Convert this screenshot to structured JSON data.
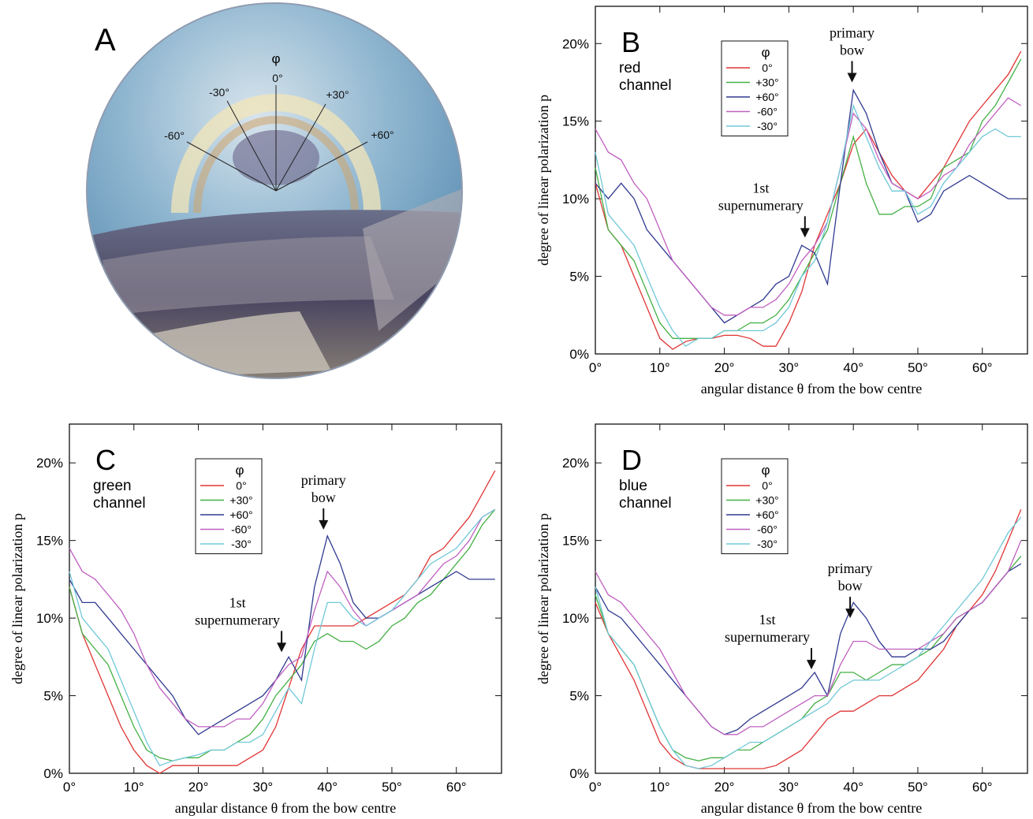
{
  "photo": {
    "panel": "A",
    "axis_symbol": "φ",
    "angle_labels": [
      "0°",
      "-30°",
      "+30°",
      "-60°",
      "+60°"
    ]
  },
  "chart_data": [
    {
      "type": "line",
      "panel": "B",
      "subtitle_lines": [
        "red",
        "channel"
      ],
      "x_label": "angular distance θ from the bow centre",
      "y_label": "degree of linear polarization p",
      "legend_title": "φ",
      "xlim": [
        0,
        67
      ],
      "ylim": [
        0,
        22.4
      ],
      "xticks": [
        {
          "value": 0,
          "label": "0°"
        },
        {
          "value": 10,
          "label": "10°"
        },
        {
          "value": 20,
          "label": "20°"
        },
        {
          "value": 30,
          "label": "30°"
        },
        {
          "value": 40,
          "label": "40°"
        },
        {
          "value": 50,
          "label": "50°"
        },
        {
          "value": 60,
          "label": "60°"
        }
      ],
      "yticks": [
        {
          "value": 0,
          "label": "0%"
        },
        {
          "value": 5,
          "label": "5%"
        },
        {
          "value": 10,
          "label": "10%"
        },
        {
          "value": 15,
          "label": "15%"
        },
        {
          "value": 20,
          "label": "20%"
        }
      ],
      "annotations": [
        {
          "lines": [
            "1st",
            "supernumerary"
          ],
          "x": 32.5,
          "y": 7.5
        },
        {
          "lines": [
            "primary",
            "bow"
          ],
          "x": 39.8,
          "y": 17.5
        }
      ],
      "x": [
        0,
        2,
        4,
        6,
        8,
        10,
        12,
        14,
        16,
        18,
        20,
        22,
        24,
        26,
        28,
        30,
        32,
        34,
        36,
        38,
        40,
        42,
        44,
        46,
        48,
        50,
        52,
        54,
        56,
        58,
        60,
        62,
        64,
        66
      ],
      "series": [
        {
          "name": "0°",
          "color": "#e03535",
          "values": [
            11,
            8,
            7,
            5,
            3,
            1,
            0.3,
            0.8,
            1,
            1,
            1.2,
            1.2,
            1,
            0.5,
            0.5,
            2,
            4,
            7,
            9,
            11,
            13.5,
            14.5,
            13,
            11.5,
            10.5,
            10,
            11,
            12,
            13.5,
            15,
            16,
            17,
            18,
            19.5
          ]
        },
        {
          "name": "+30°",
          "color": "#45b045",
          "values": [
            12,
            8,
            7,
            6,
            4,
            2,
            1,
            1,
            1,
            1,
            1.5,
            1.5,
            2,
            2,
            2.5,
            3.5,
            5,
            6.5,
            8,
            11,
            14,
            11,
            9,
            9,
            9.5,
            9.5,
            10,
            12,
            12.5,
            13,
            15,
            16,
            17.5,
            19
          ]
        },
        {
          "name": "+60°",
          "color": "#303a90",
          "values": [
            11,
            10,
            11,
            10,
            8,
            7,
            6,
            5,
            4,
            3,
            2,
            2.5,
            3,
            3.5,
            4.5,
            5,
            7,
            6.5,
            4.5,
            11,
            17,
            15.5,
            13,
            11,
            10.5,
            8.5,
            9,
            10.5,
            11,
            11.5,
            11,
            10.5,
            10,
            10
          ]
        },
        {
          "name": "-60°",
          "color": "#c060c0",
          "values": [
            14.5,
            13,
            12.5,
            11,
            10,
            8,
            6,
            5,
            4,
            3,
            2.5,
            2.5,
            3,
            3,
            3.5,
            4.5,
            6,
            7,
            8.5,
            12,
            15.5,
            14.5,
            12.5,
            11,
            10.5,
            10,
            10.5,
            11.5,
            12,
            13.5,
            14.5,
            15.5,
            16.5,
            16
          ]
        },
        {
          "name": "-30°",
          "color": "#70c8d8",
          "values": [
            13,
            9,
            8,
            7,
            5,
            3,
            1.5,
            0.5,
            1,
            1,
            1.5,
            1.5,
            1.5,
            1.5,
            2,
            3,
            5,
            6,
            8.5,
            12,
            16,
            14,
            12,
            10.5,
            10.5,
            9,
            9.5,
            11,
            12,
            13,
            14,
            14.5,
            14,
            14
          ]
        }
      ]
    },
    {
      "type": "line",
      "panel": "C",
      "subtitle_lines": [
        "green",
        "channel"
      ],
      "x_label": "angular distance θ from the bow centre",
      "y_label": "degree of linear polarization p",
      "legend_title": "φ",
      "xlim": [
        0,
        67
      ],
      "ylim": [
        0,
        22.5
      ],
      "xticks": [
        {
          "value": 0,
          "label": "0°"
        },
        {
          "value": 10,
          "label": "10°"
        },
        {
          "value": 20,
          "label": "20°"
        },
        {
          "value": 30,
          "label": "30°"
        },
        {
          "value": 40,
          "label": "40°"
        },
        {
          "value": 50,
          "label": "50°"
        },
        {
          "value": 60,
          "label": "60°"
        }
      ],
      "yticks": [
        {
          "value": 0,
          "label": "0%"
        },
        {
          "value": 5,
          "label": "5%"
        },
        {
          "value": 10,
          "label": "10%"
        },
        {
          "value": 15,
          "label": "15%"
        },
        {
          "value": 20,
          "label": "20%"
        }
      ],
      "annotations": [
        {
          "lines": [
            "1st",
            "supernumerary"
          ],
          "x": 32.9,
          "y": 7.8
        },
        {
          "lines": [
            "primary",
            "bow"
          ],
          "x": 39.4,
          "y": 15.7
        }
      ],
      "x": [
        0,
        2,
        4,
        6,
        8,
        10,
        12,
        14,
        16,
        18,
        20,
        22,
        24,
        26,
        28,
        30,
        32,
        34,
        36,
        38,
        40,
        42,
        44,
        46,
        48,
        50,
        52,
        54,
        56,
        58,
        60,
        62,
        64,
        66
      ],
      "series": [
        {
          "name": "0°",
          "color": "#e03535",
          "values": [
            12,
            9,
            7,
            5,
            3,
            1.5,
            0.5,
            0,
            0.5,
            0.5,
            0.5,
            0.5,
            0.5,
            0.5,
            1,
            1.5,
            3,
            5.5,
            8,
            9.5,
            9.5,
            9.5,
            9.5,
            10,
            10.5,
            11,
            11.5,
            12.5,
            14,
            14.5,
            15.5,
            16.5,
            18,
            19.5
          ]
        },
        {
          "name": "+30°",
          "color": "#45b045",
          "values": [
            12,
            9,
            8,
            7,
            5,
            3,
            1.5,
            1,
            0.8,
            1,
            1,
            1.5,
            1.5,
            2,
            2.5,
            3.5,
            5,
            6,
            7,
            8.5,
            9,
            8.5,
            8.5,
            8,
            8.5,
            9.5,
            10,
            11,
            11.5,
            12.5,
            13.5,
            14.5,
            16,
            17
          ]
        },
        {
          "name": "+60°",
          "color": "#303a90",
          "values": [
            12.5,
            11,
            11,
            10,
            9,
            8,
            7,
            6,
            5,
            3.5,
            2.5,
            3,
            3.5,
            4,
            4.5,
            5,
            6,
            7.5,
            6,
            12,
            15.3,
            13.5,
            11,
            10,
            10,
            10.5,
            11,
            11.5,
            12,
            12.5,
            13,
            12.5,
            12.5,
            12.5
          ]
        },
        {
          "name": "-60°",
          "color": "#c060c0",
          "values": [
            14.5,
            13,
            12.5,
            11.5,
            10.5,
            9,
            7,
            5.5,
            4.5,
            3.5,
            3,
            3,
            3,
            3.5,
            3.5,
            4.5,
            6,
            7,
            7.5,
            10.5,
            13,
            12,
            10.5,
            9.5,
            10,
            10.5,
            11,
            11.5,
            12.5,
            13.5,
            14,
            15,
            16.5,
            17
          ]
        },
        {
          "name": "-30°",
          "color": "#70c8d8",
          "values": [
            13,
            10,
            9,
            8,
            6,
            4,
            2,
            0.5,
            0.8,
            1,
            1.2,
            1.5,
            1.5,
            2,
            2,
            2.5,
            4,
            5.5,
            4.5,
            8,
            11,
            11,
            10,
            9.5,
            10,
            10.5,
            11.5,
            12.5,
            13.5,
            14,
            14.5,
            15.5,
            16.5,
            17
          ]
        }
      ]
    },
    {
      "type": "line",
      "panel": "D",
      "subtitle_lines": [
        "blue",
        "channel"
      ],
      "x_label": "angular distance θ from the bow centre",
      "y_label": "degree of linear polarization p",
      "legend_title": "φ",
      "xlim": [
        0,
        67
      ],
      "ylim": [
        0,
        22.5
      ],
      "xticks": [
        {
          "value": 0,
          "label": "0°"
        },
        {
          "value": 10,
          "label": "10°"
        },
        {
          "value": 20,
          "label": "20°"
        },
        {
          "value": 30,
          "label": "30°"
        },
        {
          "value": 40,
          "label": "40°"
        },
        {
          "value": 50,
          "label": "50°"
        },
        {
          "value": 60,
          "label": "60°"
        }
      ],
      "yticks": [
        {
          "value": 0,
          "label": "0%"
        },
        {
          "value": 5,
          "label": "5%"
        },
        {
          "value": 10,
          "label": "10%"
        },
        {
          "value": 15,
          "label": "15%"
        },
        {
          "value": 20,
          "label": "20%"
        }
      ],
      "annotations": [
        {
          "lines": [
            "1st",
            "supernumerary"
          ],
          "x": 33.5,
          "y": 6.7
        },
        {
          "lines": [
            "primary",
            "bow"
          ],
          "x": 39.5,
          "y": 10
        }
      ],
      "x": [
        0,
        2,
        4,
        6,
        8,
        10,
        12,
        14,
        16,
        18,
        20,
        22,
        24,
        26,
        28,
        30,
        32,
        34,
        36,
        38,
        40,
        42,
        44,
        46,
        48,
        50,
        52,
        54,
        56,
        58,
        60,
        62,
        64,
        66
      ],
      "series": [
        {
          "name": "0°",
          "color": "#e03535",
          "values": [
            11,
            9,
            7.5,
            6,
            4,
            2,
            1,
            0.5,
            0.3,
            0.3,
            0.3,
            0.3,
            0.3,
            0.3,
            0.5,
            1,
            1.5,
            2.5,
            3.5,
            4,
            4,
            4.5,
            5,
            5,
            5.5,
            6,
            7,
            8,
            9.5,
            10.5,
            11.5,
            13,
            15,
            17
          ]
        },
        {
          "name": "+30°",
          "color": "#45b045",
          "values": [
            11.5,
            9,
            8,
            7,
            5,
            3,
            1.5,
            1,
            0.8,
            1,
            1,
            1.5,
            1.5,
            2,
            2.5,
            3,
            3.5,
            4.5,
            5,
            6.5,
            6.5,
            6,
            6.5,
            7,
            7,
            7.5,
            8,
            9,
            10,
            10.5,
            11,
            12,
            13,
            14
          ]
        },
        {
          "name": "+60°",
          "color": "#303a90",
          "values": [
            12,
            10.5,
            10,
            9,
            8,
            7,
            6,
            5,
            4,
            3,
            2.5,
            2.8,
            3.5,
            4,
            4.5,
            5,
            5.5,
            6.5,
            5,
            9,
            11,
            10,
            8.5,
            7.5,
            7.5,
            8,
            8,
            8.5,
            9.5,
            10.5,
            11,
            12,
            13,
            13.5
          ]
        },
        {
          "name": "-60°",
          "color": "#c060c0",
          "values": [
            13,
            11.5,
            11,
            10,
            9,
            8,
            6.5,
            5,
            4,
            3,
            2.5,
            2.5,
            3,
            3,
            3.5,
            4,
            4.5,
            5,
            5,
            7,
            8.5,
            8.5,
            8,
            8,
            8,
            8,
            8.5,
            9,
            10,
            10.5,
            11,
            12,
            13,
            15
          ]
        },
        {
          "name": "-30°",
          "color": "#70c8d8",
          "values": [
            12,
            9,
            8,
            7,
            5,
            3,
            1.5,
            0.5,
            0.3,
            0.5,
            1,
            1.5,
            2,
            2,
            2.5,
            3,
            3.5,
            4,
            4.5,
            5.5,
            6,
            6,
            6,
            6.5,
            7,
            7.5,
            8.5,
            9.5,
            10.5,
            11.5,
            12.5,
            14,
            15.5,
            16.5
          ]
        }
      ]
    }
  ]
}
